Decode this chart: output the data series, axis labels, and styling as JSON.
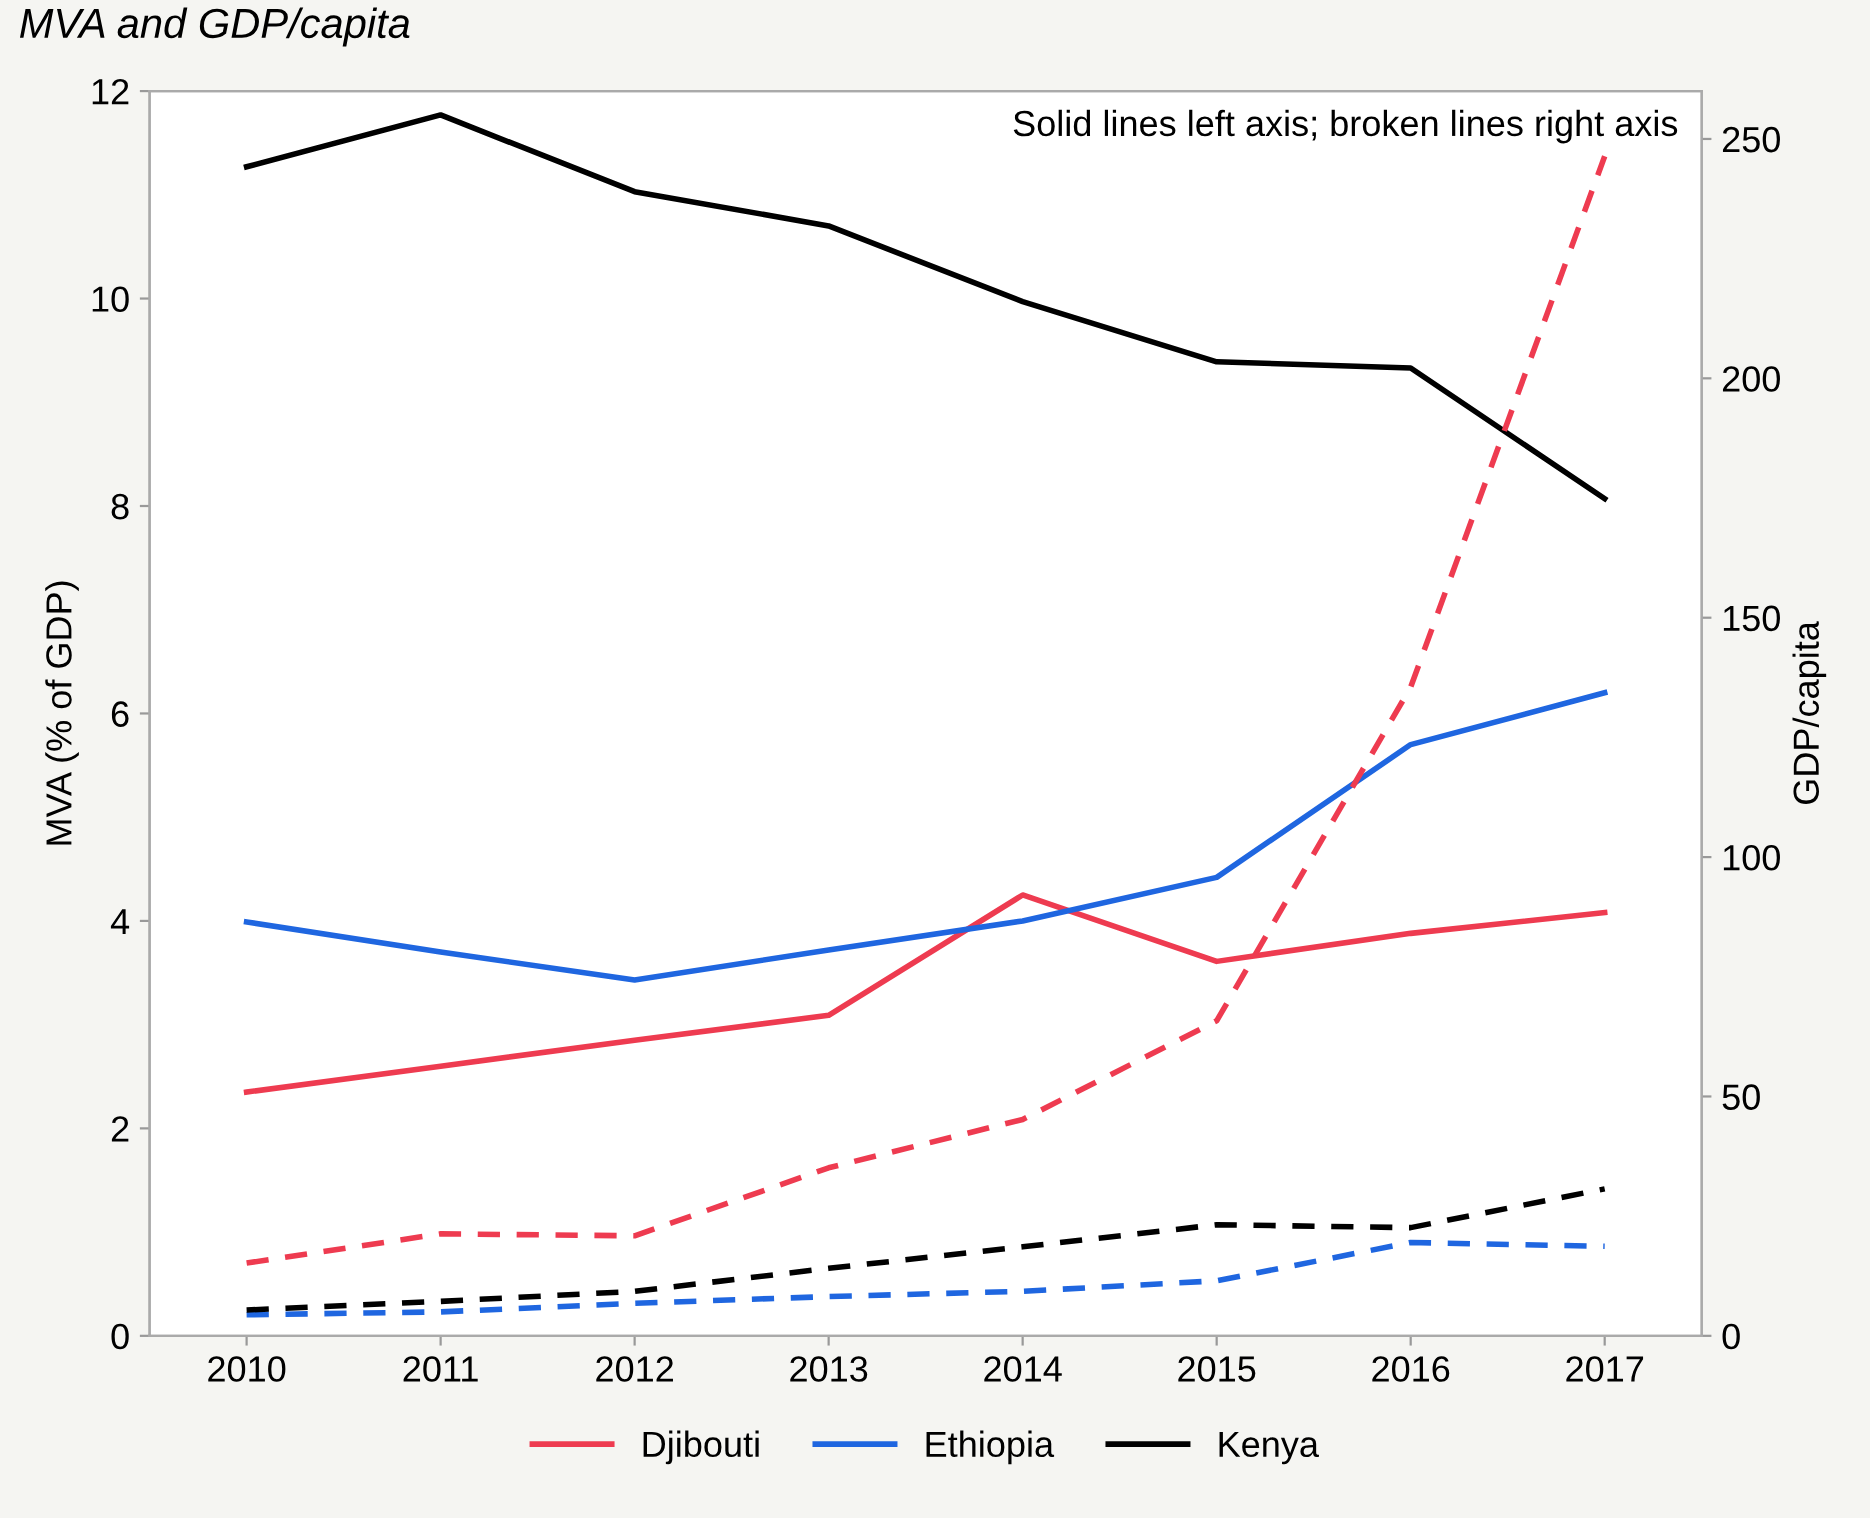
{
  "chart_data": {
    "type": "line",
    "title": "MVA and GDP/capita",
    "ylabel": "MVA (% of GDP)",
    "y2label": "GDP/capita",
    "annotations": [
      "Solid lines left axis; broken lines right axis"
    ],
    "x": [
      2010,
      2011,
      2012,
      2013,
      2014,
      2015,
      2016,
      2017
    ],
    "xlim": [
      2009.5,
      2017.5
    ],
    "xticks": [
      2010,
      2011,
      2012,
      2013,
      2014,
      2015,
      2016,
      2017
    ],
    "ylim": [
      0,
      12
    ],
    "yticks": [
      0,
      2,
      4,
      6,
      8,
      10,
      12
    ],
    "y2lim": [
      0,
      260
    ],
    "y2ticks": [
      0,
      50,
      100,
      150,
      200,
      250
    ],
    "legend": "bottom",
    "series": [
      {
        "name": "Djibouti",
        "color": "#ee3b50",
        "line_style": "solid",
        "values": [
          2.35,
          2.6,
          2.85,
          3.09,
          4.25,
          3.61,
          3.88,
          4.08
        ]
      },
      {
        "name": "Ethiopia",
        "color": "#1f66e0",
        "line_style": "solid",
        "values": [
          3.99,
          3.7,
          3.43,
          3.72,
          4.0,
          4.42,
          5.7,
          6.2
        ]
      },
      {
        "name": "Kenya",
        "color": "#000000",
        "line_style": "solid",
        "values": [
          11.27,
          11.77,
          11.03,
          10.7,
          9.97,
          9.39,
          9.33,
          8.07
        ]
      },
      {
        "color": "#ee3b50",
        "line_style": "dashed",
        "axis": "y2",
        "values": [
          15.2,
          21.3,
          20.9,
          35.1,
          45.2,
          65.8,
          135.5,
          246.4
        ]
      },
      {
        "color": "#1f66e0",
        "line_style": "dashed",
        "axis": "y2",
        "values": [
          4.4,
          5.0,
          6.8,
          8.2,
          9.3,
          11.5,
          19.5,
          18.7
        ]
      },
      {
        "color": "#000000",
        "line_style": "dashed",
        "axis": "y2",
        "values": [
          5.4,
          7.2,
          9.3,
          14.1,
          18.6,
          23.2,
          22.6,
          30.7
        ]
      }
    ]
  }
}
